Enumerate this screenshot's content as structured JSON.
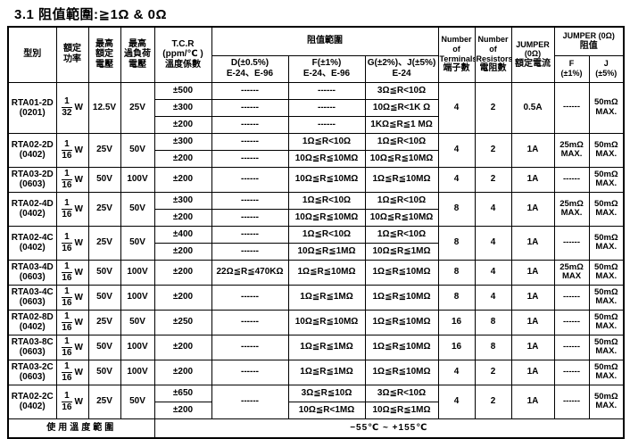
{
  "title": "3.1 阻值範圍:≧1Ω & 0Ω",
  "table": {
    "headers": {
      "model": [
        "型別"
      ],
      "rated_power": [
        "額定",
        "功率"
      ],
      "max_rated_voltage": [
        "最高",
        "額定",
        "電壓"
      ],
      "max_overload_voltage": [
        "最高",
        "過負荷",
        "電壓"
      ],
      "tcr": [
        "T.C.R",
        "(ppm/℃ )",
        "溫度係數"
      ],
      "resistance_range_group": "阻值範圍",
      "col_d": [
        "D(±0.5%)",
        "E-24、E-96"
      ],
      "col_f": [
        "F(±1%)",
        "E-24、E-96"
      ],
      "col_g": [
        "G(±2%)、J(±5%)",
        "E-24"
      ],
      "terminals": [
        "Number",
        "of",
        "Terminals",
        "端子數"
      ],
      "resistors": [
        "Number",
        "of",
        "Resistors",
        "電阻數"
      ],
      "jumper_current": [
        "JUMPER",
        "(0Ω)",
        "額定電流"
      ],
      "jumper_group": [
        "JUMPER (0Ω)",
        "阻值"
      ],
      "jumper_f": [
        "F",
        "(±1%)"
      ],
      "jumper_j": [
        "J",
        "(±5%)"
      ]
    },
    "products": [
      {
        "model": "RTA01-2D",
        "package": "(0201)",
        "power_num": "1",
        "power_den": "32",
        "power_unit": "W",
        "max_rated_voltage": "12.5V",
        "max_overload_voltage": "25V",
        "rows": [
          {
            "tcr": "±500",
            "d": "------",
            "f": "------",
            "g": "3Ω≦R<10Ω"
          },
          {
            "tcr": "±300",
            "d": "------",
            "f": "------",
            "g": "10Ω≦R<1K Ω"
          },
          {
            "tcr": "±200",
            "d": "------",
            "f": "------",
            "g": "1KΩ≦R≦1 MΩ"
          }
        ],
        "terminals": "4",
        "resistors": "2",
        "jumper_current": "0.5A",
        "jumper_f": "------",
        "jumper_j": "50mΩ MAX."
      },
      {
        "model": "RTA02-2D",
        "package": "(0402)",
        "power_num": "1",
        "power_den": "16",
        "power_unit": "W",
        "max_rated_voltage": "25V",
        "max_overload_voltage": "50V",
        "rows": [
          {
            "tcr": "±300",
            "d": "------",
            "f": "1Ω≦R<10Ω",
            "g": "1Ω≦R<10Ω"
          },
          {
            "tcr": "±200",
            "d": "------",
            "f": "10Ω≦R≦10MΩ",
            "g": "10Ω≦R≦10MΩ"
          }
        ],
        "terminals": "4",
        "resistors": "2",
        "jumper_current": "1A",
        "jumper_f": "25mΩ MAX.",
        "jumper_j": "50mΩ MAX."
      },
      {
        "model": "RTA03-2D",
        "package": "(0603)",
        "power_num": "1",
        "power_den": "16",
        "power_unit": "W",
        "max_rated_voltage": "50V",
        "max_overload_voltage": "100V",
        "rows": [
          {
            "tcr": "±200",
            "d": "------",
            "f": "10Ω≦R≦10MΩ",
            "g": "1Ω≦R≦10MΩ"
          }
        ],
        "terminals": "4",
        "resistors": "2",
        "jumper_current": "1A",
        "jumper_f": "------",
        "jumper_j": "50mΩ MAX."
      },
      {
        "model": "RTA02-4D",
        "package": "(0402)",
        "power_num": "1",
        "power_den": "16",
        "power_unit": "W",
        "max_rated_voltage": "25V",
        "max_overload_voltage": "50V",
        "rows": [
          {
            "tcr": "±300",
            "d": "------",
            "f": "1Ω≦R<10Ω",
            "g": "1Ω≦R<10Ω"
          },
          {
            "tcr": "±200",
            "d": "------",
            "f": "10Ω≦R≦10MΩ",
            "g": "10Ω≦R≦10MΩ"
          }
        ],
        "terminals": "8",
        "resistors": "4",
        "jumper_current": "1A",
        "jumper_f": "25mΩ MAX.",
        "jumper_j": "50mΩ MAX."
      },
      {
        "model": "RTA02-4C",
        "package": "(0402)",
        "power_num": "1",
        "power_den": "16",
        "power_unit": "W",
        "max_rated_voltage": "25V",
        "max_overload_voltage": "50V",
        "rows": [
          {
            "tcr": "±400",
            "d": "------",
            "f": "1Ω≦R<10Ω",
            "g": "1Ω≦R<10Ω"
          },
          {
            "tcr": "±200",
            "d": "------",
            "f": "10Ω≦R≦1MΩ",
            "g": "10Ω≦R≦1MΩ"
          }
        ],
        "terminals": "8",
        "resistors": "4",
        "jumper_current": "1A",
        "jumper_f": "------",
        "jumper_j": "50mΩ MAX."
      },
      {
        "model": "RTA03-4D",
        "package": "(0603)",
        "power_num": "1",
        "power_den": "16",
        "power_unit": "W",
        "max_rated_voltage": "50V",
        "max_overload_voltage": "100V",
        "rows": [
          {
            "tcr": "±200",
            "d": "22Ω≦R≦470KΩ",
            "f": "1Ω≦R≦10MΩ",
            "g": "1Ω≦R≦10MΩ"
          }
        ],
        "terminals": "8",
        "resistors": "4",
        "jumper_current": "1A",
        "jumper_f": "25mΩ MAX",
        "jumper_j": "50mΩ MAX."
      },
      {
        "model": "RTA03-4C",
        "package": "(0603)",
        "power_num": "1",
        "power_den": "16",
        "power_unit": "W",
        "max_rated_voltage": "50V",
        "max_overload_voltage": "100V",
        "rows": [
          {
            "tcr": "±200",
            "d": "------",
            "f": "1Ω≦R≦1MΩ",
            "g": "1Ω≦R≦10MΩ"
          }
        ],
        "terminals": "8",
        "resistors": "4",
        "jumper_current": "1A",
        "jumper_f": "------",
        "jumper_j": "50mΩ MAX."
      },
      {
        "model": "RTA02-8D",
        "package": "(0402)",
        "power_num": "1",
        "power_den": "16",
        "power_unit": "W",
        "max_rated_voltage": "25V",
        "max_overload_voltage": "50V",
        "rows": [
          {
            "tcr": "±250",
            "d": "------",
            "f": "10Ω≦R≦10MΩ",
            "g": "1Ω≦R≦10MΩ"
          }
        ],
        "terminals": "16",
        "resistors": "8",
        "jumper_current": "1A",
        "jumper_f": "------",
        "jumper_j": "50mΩ MAX."
      },
      {
        "model": "RTA03-8C",
        "package": "(0603)",
        "power_num": "1",
        "power_den": "16",
        "power_unit": "W",
        "max_rated_voltage": "50V",
        "max_overload_voltage": "100V",
        "rows": [
          {
            "tcr": "±200",
            "d": "------",
            "f": "1Ω≦R≦1MΩ",
            "g": "1Ω≦R≦10MΩ"
          }
        ],
        "terminals": "16",
        "resistors": "8",
        "jumper_current": "1A",
        "jumper_f": "------",
        "jumper_j": "50mΩ MAX."
      },
      {
        "model": "RTA03-2C",
        "package": "(0603)",
        "power_num": "1",
        "power_den": "16",
        "power_unit": "W",
        "max_rated_voltage": "50V",
        "max_overload_voltage": "100V",
        "rows": [
          {
            "tcr": "±200",
            "d": "------",
            "f": "1Ω≦R≦1MΩ",
            "g": "1Ω≦R≦10MΩ"
          }
        ],
        "terminals": "4",
        "resistors": "2",
        "jumper_current": "1A",
        "jumper_f": "------",
        "jumper_j": "50mΩ MAX."
      },
      {
        "model": "RTA02-2C",
        "package": "(0402)",
        "power_num": "1",
        "power_den": "16",
        "power_unit": "W",
        "max_rated_voltage": "25V",
        "max_overload_voltage": "50V",
        "d_merged": "------",
        "rows": [
          {
            "tcr": "±650",
            "f": "3Ω≦R≦10Ω",
            "g": "3Ω≦R<10Ω"
          },
          {
            "tcr": "±200",
            "f": "10Ω≦R<1MΩ",
            "g": "10Ω≦R≦1MΩ"
          }
        ],
        "terminals": "4",
        "resistors": "2",
        "jumper_current": "1A",
        "jumper_f": "------",
        "jumper_j": "50mΩ MAX."
      }
    ],
    "footer": {
      "label": "使用溫度範圍",
      "value": "−55℃ ~ +155℃"
    }
  }
}
